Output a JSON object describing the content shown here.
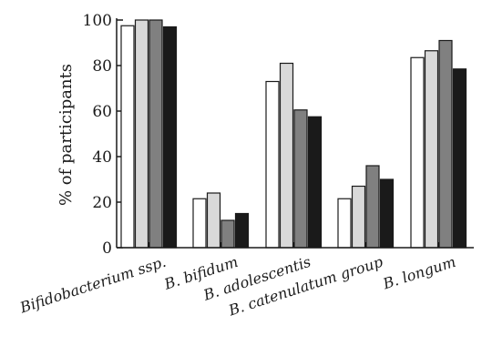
{
  "chart_data": {
    "type": "bar",
    "ylabel": "% of participants",
    "ylim": [
      0,
      100
    ],
    "yticks": [
      0,
      20,
      40,
      60,
      80,
      100
    ],
    "grid": false,
    "categories": [
      "Bifidobacterium ssp.",
      "B. bifidum",
      "B. adolescentis",
      "B. catenulatum group",
      "B. longum"
    ],
    "series": [
      {
        "values": [
          97.5,
          21.5,
          73,
          21.5,
          83.5
        ],
        "color": "#ffffff"
      },
      {
        "values": [
          100,
          24,
          81,
          27,
          86.5
        ],
        "color": "#d9d9d9"
      },
      {
        "values": [
          100,
          12,
          60.5,
          36,
          91
        ],
        "color": "#808080"
      },
      {
        "values": [
          97,
          15,
          57.5,
          30,
          78.5
        ],
        "color": "#1a1a1a"
      }
    ]
  }
}
